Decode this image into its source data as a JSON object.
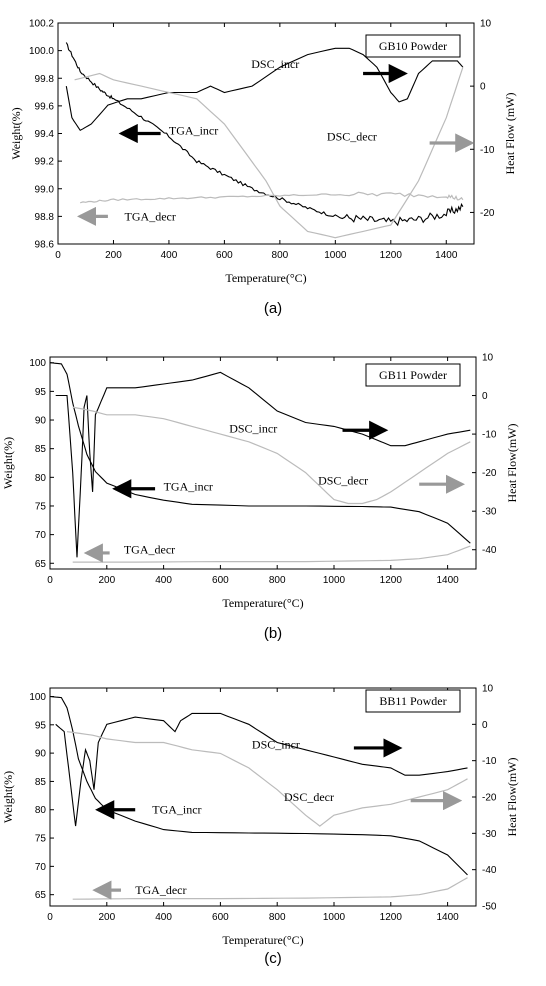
{
  "chart_data": [
    {
      "type": "line",
      "panel_label": "(a)",
      "legend_box": "GB10 Powder",
      "xlabel": "Temperature(°C)",
      "ylabel": "Weight(%)",
      "y2label": "Heat Flow (mW)",
      "xlim": [
        0,
        1500
      ],
      "ylim": [
        98.6,
        100.2
      ],
      "y2lim": [
        -25,
        10
      ],
      "xticks": [
        0,
        200,
        400,
        600,
        800,
        1000,
        1200,
        1400
      ],
      "yticks": [
        98.6,
        98.8,
        99.0,
        99.2,
        99.4,
        99.6,
        99.8,
        100.0,
        100.2
      ],
      "yticklabels": [
        "98.6",
        "98.8",
        "99.0",
        "99.2",
        "99.4",
        "99.6",
        "99.8",
        "100.0",
        "100.2"
      ],
      "y2ticks": [
        -20,
        -10,
        0,
        10
      ],
      "y2ticklabels": [
        "-20",
        "-10",
        "0",
        "10"
      ],
      "series": [
        {
          "axis": "left",
          "color": "#000000",
          "noise": 0.015,
          "x": [
            30,
            80,
            150,
            200,
            300,
            400,
            500,
            600,
            700,
            800,
            900,
            1000,
            1100,
            1200,
            1300,
            1400,
            1460
          ],
          "y": [
            100.05,
            99.85,
            99.72,
            99.65,
            99.52,
            99.38,
            99.2,
            99.1,
            99.0,
            98.93,
            98.86,
            98.8,
            98.78,
            98.76,
            98.78,
            98.82,
            98.87
          ]
        },
        {
          "axis": "right",
          "color": "#000000",
          "x": [
            30,
            50,
            80,
            120,
            180,
            250,
            300,
            400,
            500,
            550,
            600,
            700,
            800,
            900,
            1000,
            1050,
            1100,
            1150,
            1200,
            1230,
            1260,
            1300,
            1350,
            1400,
            1440,
            1460
          ],
          "y": [
            0,
            -5,
            -7,
            -6,
            -3,
            -2,
            -2,
            -1,
            -1,
            0,
            -1,
            0,
            3,
            5,
            6,
            6,
            5,
            3,
            -1,
            -2.5,
            -2,
            2,
            4,
            4,
            4,
            3
          ]
        },
        {
          "axis": "left",
          "color": "#bbbbbb",
          "noise": 0.008,
          "x": [
            80,
            200,
            400,
            600,
            800,
            1000,
            1200,
            1400,
            1460
          ],
          "y": [
            98.9,
            98.92,
            98.93,
            98.94,
            98.95,
            98.96,
            98.96,
            98.95,
            98.92
          ]
        },
        {
          "axis": "right",
          "color": "#bbbbbb",
          "x": [
            60,
            150,
            200,
            300,
            400,
            500,
            600,
            700,
            750,
            800,
            850,
            900,
            1000,
            1100,
            1200,
            1300,
            1400,
            1460
          ],
          "y": [
            1,
            2,
            1,
            0,
            -1,
            -2,
            -6,
            -12,
            -15,
            -19,
            -21,
            -23,
            -24,
            -23,
            -22,
            -15,
            -5,
            3
          ]
        }
      ],
      "annotations": [
        {
          "text": "DSC_incr",
          "color": "#000000",
          "x": 870,
          "y2": 3.5,
          "arrow": "right",
          "ax": [
            1100,
            1250
          ],
          "ay2": 2
        },
        {
          "text": "TGA_incr",
          "color": "#000000",
          "x": 400,
          "y": 99.42,
          "arrow": "left",
          "ax": [
            370,
            230
          ],
          "ay": 99.4
        },
        {
          "text": "DSC_decr",
          "color": "#999999",
          "x": 1150,
          "y2": -8,
          "arrow": "right",
          "ax": [
            1340,
            1490
          ],
          "ay2": -9
        },
        {
          "text": "TGA_decr",
          "color": "#999999",
          "x": 240,
          "y": 98.8,
          "arrow": "left",
          "ax": [
            180,
            80
          ],
          "ay": 98.8
        }
      ]
    },
    {
      "type": "line",
      "panel_label": "(b)",
      "legend_box": "GB11 Powder",
      "xlabel": "Temperature(°C)",
      "ylabel": "Weight(%)",
      "y2label": "Heat Flow(mW)",
      "xlim": [
        0,
        1500
      ],
      "ylim": [
        64,
        101
      ],
      "y2lim": [
        -45,
        10
      ],
      "xticks": [
        0,
        200,
        400,
        600,
        800,
        1000,
        1200,
        1400
      ],
      "yticks": [
        65,
        70,
        75,
        80,
        85,
        90,
        95,
        100
      ],
      "yticklabels": [
        "65",
        "70",
        "75",
        "80",
        "85",
        "90",
        "95",
        "100"
      ],
      "y2ticks": [
        -40,
        -30,
        -20,
        -10,
        0,
        10
      ],
      "y2ticklabels": [
        "-40",
        "-30",
        "-20",
        "-10",
        "0",
        "10"
      ],
      "series": [
        {
          "axis": "left",
          "color": "#000000",
          "x": [
            0,
            40,
            60,
            80,
            100,
            130,
            160,
            200,
            300,
            400,
            500,
            700,
            900,
            1100,
            1200,
            1300,
            1400,
            1480
          ],
          "y": [
            100,
            99.8,
            98,
            93,
            89,
            84,
            81,
            79,
            77,
            76,
            75.3,
            75,
            75,
            74.9,
            74.8,
            74,
            72,
            68.5
          ]
        },
        {
          "axis": "right",
          "color": "#000000",
          "x": [
            20,
            60,
            80,
            95,
            110,
            120,
            130,
            140,
            150,
            160,
            200,
            300,
            400,
            500,
            600,
            700,
            800,
            900,
            1000,
            1100,
            1200,
            1250,
            1300,
            1400,
            1480
          ],
          "y": [
            0,
            0,
            -20,
            -42,
            -20,
            -3,
            0,
            -15,
            -25,
            -5,
            2,
            2,
            3,
            4,
            6,
            2,
            -4,
            -7,
            -8,
            -10,
            -13,
            -13,
            -12,
            -10,
            -9
          ]
        },
        {
          "axis": "left",
          "color": "#bbbbbb",
          "x": [
            80,
            300,
            600,
            900,
            1200,
            1300,
            1400,
            1480
          ],
          "y": [
            65.2,
            65.2,
            65.3,
            65.3,
            65.5,
            65.8,
            66.5,
            68
          ]
        },
        {
          "axis": "right",
          "color": "#bbbbbb",
          "x": [
            80,
            150,
            200,
            300,
            400,
            500,
            600,
            700,
            800,
            900,
            1000,
            1050,
            1100,
            1150,
            1200,
            1300,
            1400,
            1480
          ],
          "y": [
            -3,
            -4,
            -5,
            -5,
            -6,
            -8,
            -10,
            -12,
            -15,
            -20,
            -27,
            -28,
            -28,
            -27,
            -25,
            -20,
            -15,
            -12
          ]
        }
      ],
      "annotations": [
        {
          "text": "DSC_incr",
          "color": "#000000",
          "x": 800,
          "y2": -8.5,
          "arrow": "right",
          "ax": [
            1030,
            1180
          ],
          "ay2": -9
        },
        {
          "text": "TGA_incr",
          "color": "#000000",
          "x": 400,
          "y": 78.4,
          "arrow": "left",
          "ax": [
            370,
            230
          ],
          "ay": 78
        },
        {
          "text": "DSC_decr",
          "color": "#999999",
          "x": 1120,
          "y2": -22,
          "arrow": "right",
          "ax": [
            1300,
            1450
          ],
          "ay2": -23
        },
        {
          "text": "TGA_decr",
          "color": "#999999",
          "x": 260,
          "y": 67.4,
          "arrow": "left",
          "ax": [
            210,
            130
          ],
          "ay": 66.8
        }
      ]
    },
    {
      "type": "line",
      "panel_label": "(c)",
      "legend_box": "BB11 Powder",
      "xlabel": "Temperature(°C)",
      "ylabel": "Weight(%)",
      "y2label": "Heat Flow(mW)",
      "xlim": [
        0,
        1500
      ],
      "ylim": [
        63,
        101.5
      ],
      "y2lim": [
        -50,
        10
      ],
      "xticks": [
        0,
        200,
        400,
        600,
        800,
        1000,
        1200,
        1400
      ],
      "yticks": [
        65,
        70,
        75,
        80,
        85,
        90,
        95,
        100
      ],
      "yticklabels": [
        "65",
        "70",
        "75",
        "80",
        "85",
        "90",
        "95",
        "100"
      ],
      "y2ticks": [
        -50,
        -40,
        -30,
        -20,
        -10,
        0,
        10
      ],
      "y2ticklabels": [
        "-50",
        "-40",
        "-30",
        "-20",
        "-10",
        "0",
        "10"
      ],
      "series": [
        {
          "axis": "left",
          "color": "#000000",
          "x": [
            0,
            40,
            60,
            80,
            100,
            130,
            160,
            200,
            300,
            400,
            500,
            700,
            900,
            1100,
            1200,
            1300,
            1400,
            1470
          ],
          "y": [
            100,
            99.8,
            98,
            94,
            89,
            85,
            82,
            80,
            78,
            76.5,
            76,
            75.9,
            75.8,
            75.6,
            75.4,
            74.5,
            72,
            68.5
          ]
        },
        {
          "axis": "right",
          "color": "#000000",
          "x": [
            20,
            50,
            70,
            90,
            110,
            125,
            140,
            155,
            170,
            200,
            300,
            400,
            440,
            460,
            500,
            600,
            700,
            800,
            900,
            1000,
            1100,
            1200,
            1250,
            1300,
            1400,
            1470
          ],
          "y": [
            0,
            -2,
            -15,
            -28,
            -15,
            -7,
            -10,
            -18,
            -5,
            0,
            2,
            1,
            -2,
            1,
            3,
            3,
            0,
            -5,
            -7,
            -9,
            -11,
            -12,
            -14,
            -14,
            -13,
            -12
          ]
        },
        {
          "axis": "left",
          "color": "#bbbbbb",
          "x": [
            80,
            300,
            600,
            900,
            1200,
            1300,
            1400,
            1470
          ],
          "y": [
            64.2,
            64.3,
            64.3,
            64.4,
            64.6,
            65,
            66,
            68
          ]
        },
        {
          "axis": "right",
          "color": "#bbbbbb",
          "x": [
            60,
            150,
            200,
            300,
            400,
            500,
            600,
            700,
            800,
            900,
            950,
            1000,
            1100,
            1200,
            1300,
            1400,
            1470
          ],
          "y": [
            -2,
            -3,
            -4,
            -5,
            -5,
            -7,
            -8,
            -12,
            -18,
            -25,
            -28,
            -25,
            -23,
            -22,
            -20,
            -18,
            -15
          ]
        }
      ],
      "annotations": [
        {
          "text": "DSC_incr",
          "color": "#000000",
          "x": 880,
          "y2": -5.5,
          "arrow": "right",
          "ax": [
            1070,
            1230
          ],
          "ay2": -6.5
        },
        {
          "text": "TGA_incr",
          "color": "#000000",
          "x": 360,
          "y": 80,
          "arrow": "left",
          "ax": [
            300,
            170
          ],
          "ay": 80
        },
        {
          "text": "DSC_decr",
          "color": "#999999",
          "x": 1000,
          "y2": -20,
          "arrow": "right",
          "ax": [
            1270,
            1440
          ],
          "ay2": -21
        },
        {
          "text": "TGA_decr",
          "color": "#999999",
          "x": 300,
          "y": 65.8,
          "arrow": "left",
          "ax": [
            250,
            160
          ],
          "ay": 65.8
        }
      ]
    }
  ]
}
